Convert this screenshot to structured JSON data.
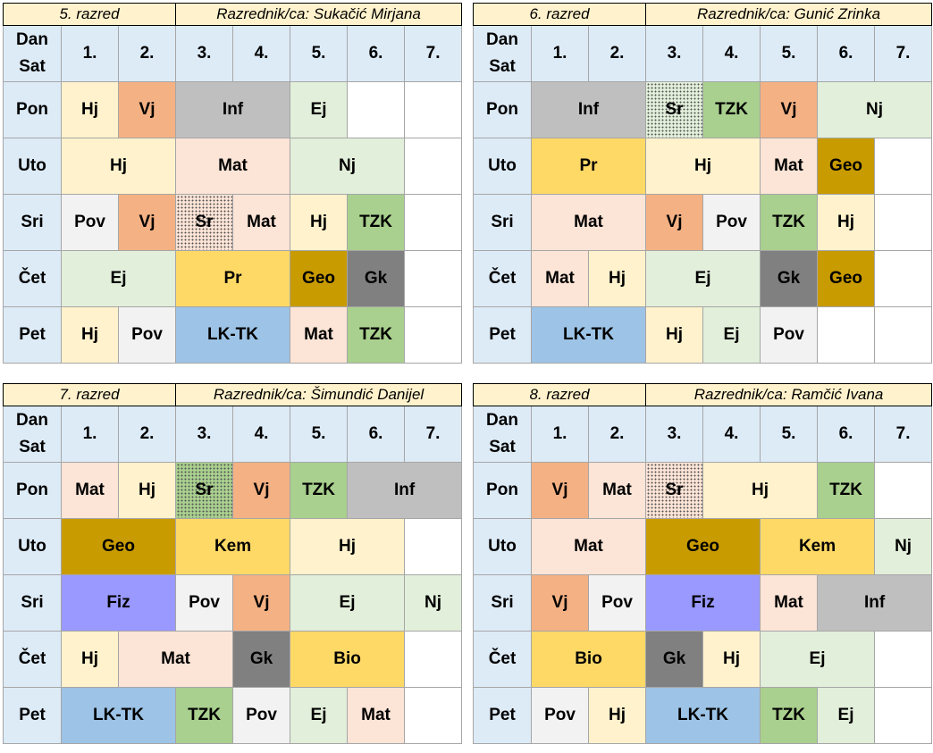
{
  "header_days_label": [
    "Dan",
    "Sat"
  ],
  "periods": [
    "1.",
    "2.",
    "3.",
    "4.",
    "5.",
    "6.",
    "7."
  ],
  "days": [
    "Pon",
    "Uto",
    "Sri",
    "Čet",
    "Pet"
  ],
  "colors": {
    "hj": "#fff2cc",
    "vj": "#f4b183",
    "inf": "#bfbfbf",
    "ej": "#e2efda",
    "nj": "#e2efda",
    "mat": "#fce4d6",
    "pov": "#f2f2f2",
    "tzk": "#a9d08e",
    "pr": "#ffd966",
    "kem": "#ffd966",
    "bio": "#ffd966",
    "geo": "#c89b00",
    "gk": "#808080",
    "lktk": "#9dc3e6",
    "fiz": "#9999ff",
    "header": "#ddebf7",
    "title": "#fff2cc"
  },
  "timetables": [
    {
      "grade": "5. razred",
      "teacher": "Razrednik/ca: Sukačić Mirjana",
      "rows": [
        [
          {
            "t": "Hj",
            "s": 1,
            "c": "hj"
          },
          {
            "t": "Vj",
            "s": 1,
            "c": "vj"
          },
          {
            "t": "Inf",
            "s": 2,
            "c": "inf"
          },
          {
            "t": "Ej",
            "s": 1,
            "c": "ej"
          },
          {
            "t": "",
            "s": 1,
            "c": "empty"
          },
          {
            "t": "",
            "s": 1,
            "c": "empty"
          }
        ],
        [
          {
            "t": "Hj",
            "s": 2,
            "c": "hj"
          },
          {
            "t": "Mat",
            "s": 2,
            "c": "mat"
          },
          {
            "t": "Nj",
            "s": 2,
            "c": "nj"
          },
          {
            "t": "",
            "s": 1,
            "c": "empty"
          }
        ],
        [
          {
            "t": "Pov",
            "s": 1,
            "c": "pov"
          },
          {
            "t": "Vj",
            "s": 1,
            "c": "vj"
          },
          {
            "t": "Sr",
            "s": 1,
            "c": "sr"
          },
          {
            "t": "Mat",
            "s": 1,
            "c": "mat"
          },
          {
            "t": "Hj",
            "s": 1,
            "c": "hj"
          },
          {
            "t": "TZK",
            "s": 1,
            "c": "tzk"
          },
          {
            "t": "",
            "s": 1,
            "c": "empty"
          }
        ],
        [
          {
            "t": "Ej",
            "s": 2,
            "c": "ej"
          },
          {
            "t": "Pr",
            "s": 2,
            "c": "pr"
          },
          {
            "t": "Geo",
            "s": 1,
            "c": "geo"
          },
          {
            "t": "Gk",
            "s": 1,
            "c": "gk"
          },
          {
            "t": "",
            "s": 1,
            "c": "empty"
          }
        ],
        [
          {
            "t": "Hj",
            "s": 1,
            "c": "hj"
          },
          {
            "t": "Pov",
            "s": 1,
            "c": "pov"
          },
          {
            "t": "LK-TK",
            "s": 2,
            "c": "lktk"
          },
          {
            "t": "Mat",
            "s": 1,
            "c": "mat"
          },
          {
            "t": "TZK",
            "s": 1,
            "c": "tzk"
          },
          {
            "t": "",
            "s": 1,
            "c": "empty"
          }
        ]
      ]
    },
    {
      "grade": "6. razred",
      "teacher": "Razrednik/ca: Gunić Zrinka",
      "rows": [
        [
          {
            "t": "Inf",
            "s": 2,
            "c": "inf"
          },
          {
            "t": "Sr",
            "s": 1,
            "c": "sr",
            "g": "ej"
          },
          {
            "t": "TZK",
            "s": 1,
            "c": "tzk"
          },
          {
            "t": "Vj",
            "s": 1,
            "c": "vj"
          },
          {
            "t": "Nj",
            "s": 2,
            "c": "nj"
          }
        ],
        [
          {
            "t": "Pr",
            "s": 2,
            "c": "pr"
          },
          {
            "t": "Hj",
            "s": 2,
            "c": "hj"
          },
          {
            "t": "Mat",
            "s": 1,
            "c": "mat"
          },
          {
            "t": "Geo",
            "s": 1,
            "c": "geo"
          },
          {
            "t": "",
            "s": 1,
            "c": "empty"
          }
        ],
        [
          {
            "t": "Mat",
            "s": 2,
            "c": "mat"
          },
          {
            "t": "Vj",
            "s": 1,
            "c": "vj"
          },
          {
            "t": "Pov",
            "s": 1,
            "c": "pov"
          },
          {
            "t": "TZK",
            "s": 1,
            "c": "tzk"
          },
          {
            "t": "Hj",
            "s": 1,
            "c": "hj"
          },
          {
            "t": "",
            "s": 1,
            "c": "empty"
          }
        ],
        [
          {
            "t": "Mat",
            "s": 1,
            "c": "mat"
          },
          {
            "t": "Hj",
            "s": 1,
            "c": "hj"
          },
          {
            "t": "Ej",
            "s": 2,
            "c": "ej"
          },
          {
            "t": "Gk",
            "s": 1,
            "c": "gk"
          },
          {
            "t": "Geo",
            "s": 1,
            "c": "geo"
          },
          {
            "t": "",
            "s": 1,
            "c": "empty"
          }
        ],
        [
          {
            "t": "LK-TK",
            "s": 2,
            "c": "lktk"
          },
          {
            "t": "Hj",
            "s": 1,
            "c": "hj"
          },
          {
            "t": "Ej",
            "s": 1,
            "c": "ej"
          },
          {
            "t": "Pov",
            "s": 1,
            "c": "pov"
          },
          {
            "t": "",
            "s": 1,
            "c": "empty"
          },
          {
            "t": "",
            "s": 1,
            "c": "empty"
          }
        ]
      ]
    },
    {
      "grade": "7. razred",
      "teacher": "Razrednik/ca: Šimundić Danijel",
      "rows": [
        [
          {
            "t": "Mat",
            "s": 1,
            "c": "mat"
          },
          {
            "t": "Hj",
            "s": 1,
            "c": "hj"
          },
          {
            "t": "Sr",
            "s": 1,
            "c": "sr",
            "g": "tzk"
          },
          {
            "t": "Vj",
            "s": 1,
            "c": "vj"
          },
          {
            "t": "TZK",
            "s": 1,
            "c": "tzk"
          },
          {
            "t": "Inf",
            "s": 2,
            "c": "inf"
          }
        ],
        [
          {
            "t": "Geo",
            "s": 2,
            "c": "geo"
          },
          {
            "t": "Kem",
            "s": 2,
            "c": "kem"
          },
          {
            "t": "Hj",
            "s": 2,
            "c": "hj"
          },
          {
            "t": "",
            "s": 1,
            "c": "empty"
          }
        ],
        [
          {
            "t": "Fiz",
            "s": 2,
            "c": "fiz"
          },
          {
            "t": "Pov",
            "s": 1,
            "c": "pov"
          },
          {
            "t": "Vj",
            "s": 1,
            "c": "vj"
          },
          {
            "t": "Ej",
            "s": 2,
            "c": "ej"
          },
          {
            "t": "Nj",
            "s": 1,
            "c": "nj"
          }
        ],
        [
          {
            "t": "Hj",
            "s": 1,
            "c": "hj"
          },
          {
            "t": "Mat",
            "s": 2,
            "c": "mat"
          },
          {
            "t": "Gk",
            "s": 1,
            "c": "gk"
          },
          {
            "t": "Bio",
            "s": 2,
            "c": "bio"
          },
          {
            "t": "",
            "s": 1,
            "c": "empty"
          }
        ],
        [
          {
            "t": "LK-TK",
            "s": 2,
            "c": "lktk"
          },
          {
            "t": "TZK",
            "s": 1,
            "c": "tzk"
          },
          {
            "t": "Pov",
            "s": 1,
            "c": "pov"
          },
          {
            "t": "Ej",
            "s": 1,
            "c": "ej"
          },
          {
            "t": "Mat",
            "s": 1,
            "c": "mat"
          },
          {
            "t": "",
            "s": 1,
            "c": "empty"
          }
        ]
      ]
    },
    {
      "grade": "8. razred",
      "teacher": "Razrednik/ca: Ramčić Ivana",
      "rows": [
        [
          {
            "t": "Vj",
            "s": 1,
            "c": "vj"
          },
          {
            "t": "Mat",
            "s": 1,
            "c": "mat"
          },
          {
            "t": "Sr",
            "s": 1,
            "c": "sr",
            "g": "hj"
          },
          {
            "t": "Hj",
            "s": 2,
            "c": "hj"
          },
          {
            "t": "TZK",
            "s": 1,
            "c": "tzk"
          },
          {
            "t": "",
            "s": 1,
            "c": "empty"
          }
        ],
        [
          {
            "t": "Mat",
            "s": 2,
            "c": "mat"
          },
          {
            "t": "Geo",
            "s": 2,
            "c": "geo"
          },
          {
            "t": "Kem",
            "s": 2,
            "c": "kem"
          },
          {
            "t": "Nj",
            "s": 1,
            "c": "nj"
          }
        ],
        [
          {
            "t": "Vj",
            "s": 1,
            "c": "vj"
          },
          {
            "t": "Pov",
            "s": 1,
            "c": "pov"
          },
          {
            "t": "Fiz",
            "s": 2,
            "c": "fiz"
          },
          {
            "t": "Mat",
            "s": 1,
            "c": "mat"
          },
          {
            "t": "Inf",
            "s": 2,
            "c": "inf"
          }
        ],
        [
          {
            "t": "Bio",
            "s": 2,
            "c": "bio"
          },
          {
            "t": "Gk",
            "s": 1,
            "c": "gk"
          },
          {
            "t": "Hj",
            "s": 1,
            "c": "hj"
          },
          {
            "t": "Ej",
            "s": 2,
            "c": "ej"
          },
          {
            "t": "",
            "s": 1,
            "c": "empty"
          }
        ],
        [
          {
            "t": "Pov",
            "s": 1,
            "c": "pov"
          },
          {
            "t": "Hj",
            "s": 1,
            "c": "hj"
          },
          {
            "t": "LK-TK",
            "s": 2,
            "c": "lktk"
          },
          {
            "t": "TZK",
            "s": 1,
            "c": "tzk"
          },
          {
            "t": "Ej",
            "s": 1,
            "c": "ej"
          },
          {
            "t": "",
            "s": 1,
            "c": "empty"
          }
        ]
      ]
    }
  ]
}
